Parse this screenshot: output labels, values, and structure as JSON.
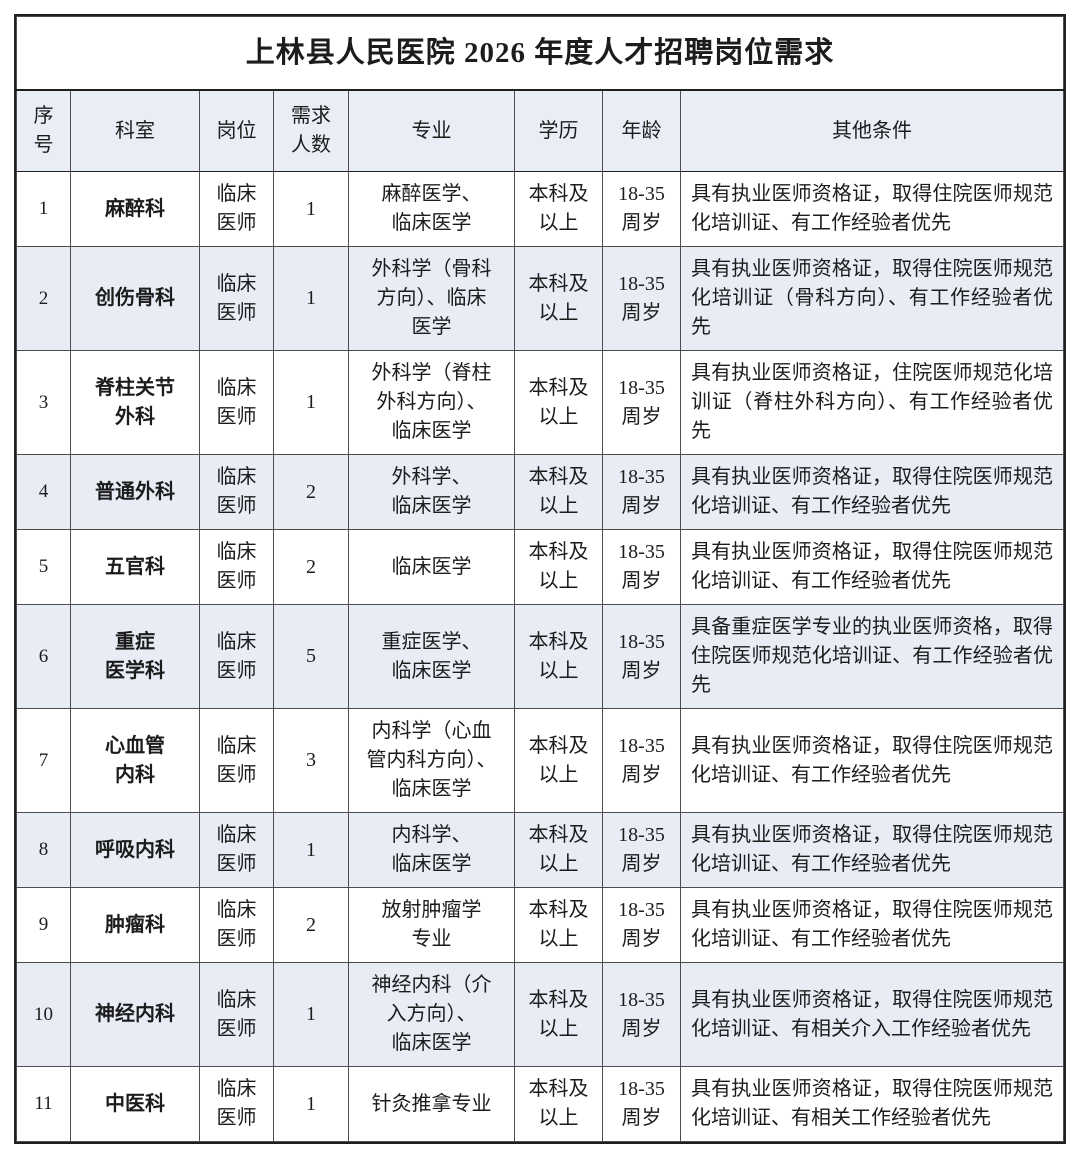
{
  "title": "上林县人民医院 2026 年度人才招聘岗位需求",
  "columns": [
    {
      "key": "no",
      "label": "序\n号"
    },
    {
      "key": "dept",
      "label": "科室"
    },
    {
      "key": "post",
      "label": "岗位"
    },
    {
      "key": "count",
      "label": "需求\n人数"
    },
    {
      "key": "major",
      "label": "专业"
    },
    {
      "key": "edu",
      "label": "学历"
    },
    {
      "key": "age",
      "label": "年龄"
    },
    {
      "key": "other",
      "label": "其他条件"
    }
  ],
  "rows": [
    {
      "no": "1",
      "dept": "麻醉科",
      "post": "临床\n医师",
      "count": "1",
      "major": "麻醉医学、\n临床医学",
      "edu": "本科及\n以上",
      "age": "18-35\n周岁",
      "other": "具有执业医师资格证，取得住院医师规范化培训证、有工作经验者优先"
    },
    {
      "no": "2",
      "dept": "创伤骨科",
      "post": "临床\n医师",
      "count": "1",
      "major": "外科学（骨科\n方向）、临床\n医学",
      "edu": "本科及\n以上",
      "age": "18-35\n周岁",
      "other": "具有执业医师资格证，取得住院医师规范化培训证（骨科方向）、有工作经验者优先"
    },
    {
      "no": "3",
      "dept": "脊柱关节\n外科",
      "post": "临床\n医师",
      "count": "1",
      "major": "外科学（脊柱\n外科方向）、\n临床医学",
      "edu": "本科及\n以上",
      "age": "18-35\n周岁",
      "other": "具有执业医师资格证，住院医师规范化培训证（脊柱外科方向）、有工作经验者优先"
    },
    {
      "no": "4",
      "dept": "普通外科",
      "post": "临床\n医师",
      "count": "2",
      "major": "外科学、\n临床医学",
      "edu": "本科及\n以上",
      "age": "18-35\n周岁",
      "other": "具有执业医师资格证，取得住院医师规范化培训证、有工作经验者优先"
    },
    {
      "no": "5",
      "dept": "五官科",
      "post": "临床\n医师",
      "count": "2",
      "major": "临床医学",
      "edu": "本科及\n以上",
      "age": "18-35\n周岁",
      "other": "具有执业医师资格证，取得住院医师规范化培训证、有工作经验者优先"
    },
    {
      "no": "6",
      "dept": "重症\n医学科",
      "post": "临床\n医师",
      "count": "5",
      "major": "重症医学、\n临床医学",
      "edu": "本科及\n以上",
      "age": "18-35\n周岁",
      "other": "具备重症医学专业的执业医师资格，取得住院医师规范化培训证、有工作经验者优先"
    },
    {
      "no": "7",
      "dept": "心血管\n内科",
      "post": "临床\n医师",
      "count": "3",
      "major": "内科学（心血\n管内科方向）、\n临床医学",
      "edu": "本科及\n以上",
      "age": "18-35\n周岁",
      "other": "具有执业医师资格证，取得住院医师规范化培训证、有工作经验者优先"
    },
    {
      "no": "8",
      "dept": "呼吸内科",
      "post": "临床\n医师",
      "count": "1",
      "major": "内科学、\n临床医学",
      "edu": "本科及\n以上",
      "age": "18-35\n周岁",
      "other": "具有执业医师资格证，取得住院医师规范化培训证、有工作经验者优先"
    },
    {
      "no": "9",
      "dept": "肿瘤科",
      "post": "临床\n医师",
      "count": "2",
      "major": "放射肿瘤学\n专业",
      "edu": "本科及\n以上",
      "age": "18-35\n周岁",
      "other": "具有执业医师资格证，取得住院医师规范化培训证、有工作经验者优先"
    },
    {
      "no": "10",
      "dept": "神经内科",
      "post": "临床\n医师",
      "count": "1",
      "major": "神经内科（介\n入方向）、\n临床医学",
      "edu": "本科及\n以上",
      "age": "18-35\n周岁",
      "other": "具有执业医师资格证，取得住院医师规范化培训证、有相关介入工作经验者优先"
    },
    {
      "no": "11",
      "dept": "中医科",
      "post": "临床\n医师",
      "count": "1",
      "major": "针灸推拿专业",
      "edu": "本科及\n以上",
      "age": "18-35\n周岁",
      "other": "具有执业医师资格证，取得住院医师规范化培训证、有相关工作经验者优先"
    }
  ],
  "colors": {
    "header_bg": "#e9edf6",
    "alt_row_bg": "#e7ecf5",
    "border": "#4d4d4d",
    "outer_border": "#1f1f1f",
    "text": "#1c1c1c"
  }
}
